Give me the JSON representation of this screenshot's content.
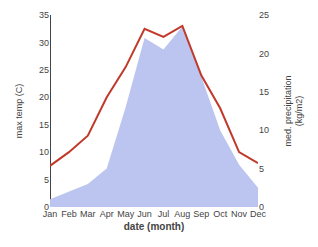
{
  "chart_data": {
    "type": "line",
    "categories": [
      "Jan",
      "Feb",
      "Mar",
      "Apr",
      "May",
      "Jun",
      "Jul",
      "Aug",
      "Sep",
      "Oct",
      "Nov",
      "Dec"
    ],
    "series": [
      {
        "type": "area",
        "axis": "y2",
        "color": "#bcc5ef",
        "values": [
          1.0,
          2.0,
          3.0,
          5.0,
          13.0,
          22.0,
          20.5,
          23.5,
          17.0,
          10.0,
          5.5,
          2.5
        ]
      },
      {
        "type": "line",
        "color": "#c0392b",
        "values": [
          7.5,
          10.0,
          13.0,
          20.0,
          25.5,
          32.5,
          31.0,
          33.0,
          24.0,
          18.0,
          10.0,
          8.0
        ]
      }
    ],
    "xlabel": "date (month)",
    "ylabel": "max temp (C)",
    "y2label": "med. precipitation\n(kg/m2)",
    "ylim": [
      0,
      35
    ],
    "yticks": [
      0,
      5,
      10,
      15,
      20,
      25,
      30,
      35
    ],
    "y2lim": [
      0,
      25
    ],
    "y2ticks": [
      0,
      5,
      10,
      15,
      20,
      25
    ],
    "grid": false
  }
}
